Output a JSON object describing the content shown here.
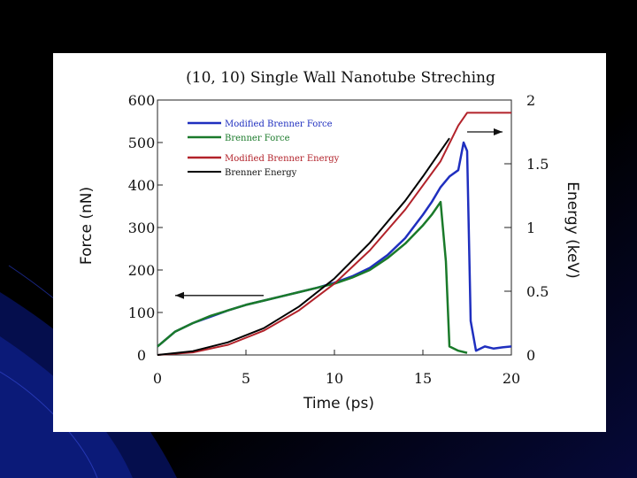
{
  "chart_data": {
    "type": "line",
    "title": "(10, 10) Single Wall Nanotube Streching",
    "xlabel": "Time (ps)",
    "ylabel": "Force (nN)",
    "y2label": "Energy (keV)",
    "xlim": [
      0,
      20
    ],
    "ylim": [
      0,
      600
    ],
    "y2lim": [
      0,
      2
    ],
    "x_ticks": [
      "0",
      "5",
      "10",
      "15",
      "20"
    ],
    "y_ticks": [
      "0",
      "100",
      "200",
      "300",
      "400",
      "500",
      "600"
    ],
    "y2_ticks": [
      "0",
      "0.5",
      "1",
      "1.5",
      "2"
    ],
    "legend_position": "top-left",
    "series": [
      {
        "name": "Modified Brenner Force",
        "axis": "left",
        "color": "#1f2fbf",
        "x": [
          0,
          1,
          2,
          3,
          4,
          5,
          6,
          7,
          8,
          9,
          10,
          11,
          12,
          13,
          14,
          15,
          15.5,
          16,
          16.5,
          17,
          17.3,
          17.5,
          17.7,
          18,
          18.5,
          19,
          19.5,
          20
        ],
        "y": [
          20,
          55,
          75,
          90,
          105,
          118,
          128,
          138,
          148,
          158,
          170,
          185,
          205,
          235,
          275,
          330,
          360,
          395,
          420,
          435,
          500,
          480,
          80,
          10,
          20,
          15,
          18,
          20
        ]
      },
      {
        "name": "Brenner Force",
        "axis": "left",
        "color": "#1a7a2a",
        "x": [
          0,
          1,
          2,
          3,
          4,
          5,
          6,
          7,
          8,
          9,
          10,
          11,
          12,
          13,
          14,
          15,
          15.5,
          16,
          16.3,
          16.5,
          17,
          17.5
        ],
        "y": [
          20,
          55,
          75,
          92,
          105,
          118,
          128,
          138,
          148,
          158,
          168,
          182,
          200,
          228,
          262,
          305,
          330,
          360,
          220,
          20,
          10,
          5
        ]
      },
      {
        "name": "Modified Brenner Energy",
        "axis": "right",
        "color": "#b2222a",
        "x": [
          0,
          2,
          4,
          6,
          8,
          10,
          12,
          14,
          16,
          17,
          17.5,
          18,
          19,
          20
        ],
        "y": [
          0,
          0.02,
          0.08,
          0.19,
          0.35,
          0.56,
          0.82,
          1.14,
          1.52,
          1.8,
          1.9,
          1.9,
          1.9,
          1.9
        ]
      },
      {
        "name": "Brenner Energy",
        "axis": "right",
        "color": "#000000",
        "x": [
          0,
          2,
          4,
          6,
          8,
          10,
          12,
          14,
          15,
          16,
          16.5
        ],
        "y": [
          0,
          0.03,
          0.1,
          0.21,
          0.38,
          0.6,
          0.88,
          1.21,
          1.4,
          1.6,
          1.7
        ]
      }
    ],
    "annotations": [
      {
        "type": "arrow",
        "direction": "left",
        "axis": "left",
        "x_start": 6,
        "x_end": 1,
        "y": 140
      },
      {
        "type": "arrow",
        "direction": "right",
        "axis": "right",
        "x_start": 17.5,
        "x_end": 19.5,
        "y": 1.75
      }
    ]
  }
}
